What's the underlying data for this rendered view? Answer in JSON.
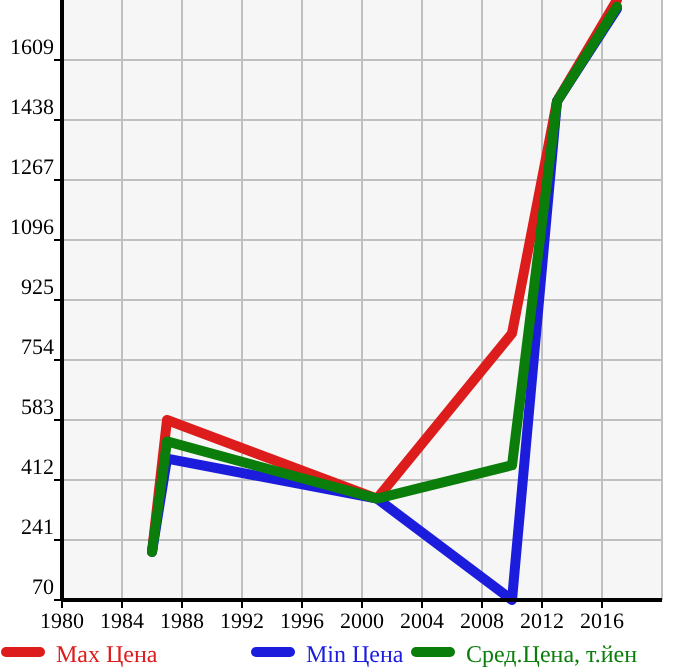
{
  "chart_data": {
    "type": "line",
    "x": [
      1986,
      1987,
      2001,
      2010,
      2013,
      2017
    ],
    "series": [
      {
        "name": "Max Цена",
        "color": "#dd1c1c",
        "values": [
          207,
          583,
          359,
          830,
          1491,
          1780
        ]
      },
      {
        "name": "Min Цена",
        "color": "#1c1cdd",
        "values": [
          207,
          473,
          359,
          70,
          1491,
          1755
        ]
      },
      {
        "name": "Сред.Цена, т.йен",
        "color": "#0a7d0a",
        "values": [
          207,
          522,
          359,
          454,
          1491,
          1761
        ]
      }
    ],
    "xlim": [
      1980,
      2020
    ],
    "xticks": [
      1980,
      1984,
      1988,
      1992,
      1996,
      2000,
      2004,
      2008,
      2012,
      2016
    ],
    "ylim": [
      70,
      1780
    ],
    "yticks": [
      70,
      241,
      412,
      583,
      754,
      925,
      1096,
      1267,
      1438,
      1609
    ],
    "grid": true,
    "legend": "bottom"
  }
}
